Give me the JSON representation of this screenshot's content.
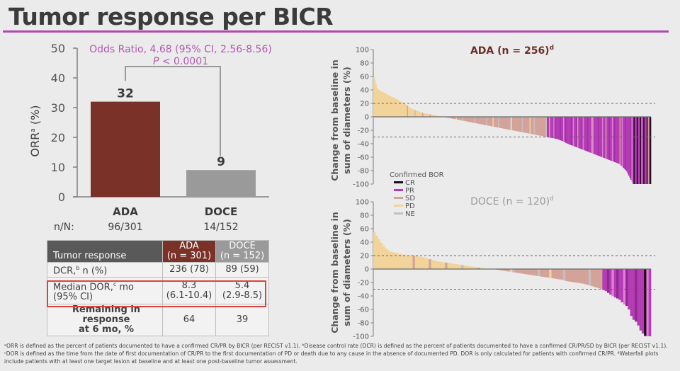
{
  "title": "Tumor response per BICR",
  "colors": {
    "accent_rule": "#b04ab0",
    "ada": "#7a3128",
    "doce": "#9a9a9a",
    "odds_text": "#b05ab0",
    "highlight_box": "#d9443f",
    "CR": "#1a0a14",
    "PR": "#b43cb4",
    "SD": "#d3a39a",
    "PD": "#f2d49a",
    "NE": "#c9bcc0"
  },
  "bar_chart": {
    "ylabel": "ORR",
    "ylabel_sup": "a",
    "ylabel_suffix": " (%)",
    "odds_ratio": "Odds Ratio, 4.68 (95% CI, 2.56-8.56)",
    "p_value_label": "P",
    "p_value_rest": " < 0.0001",
    "nn_label": "n/N:"
  },
  "table": {
    "header": {
      "label": "Tumor response",
      "ada_line1": "ADA",
      "ada_line2": "(n = 301)",
      "doce_line1": "DOCE",
      "doce_line2": "(n = 152)"
    },
    "rows": [
      {
        "label": "DCR,",
        "sup": "b",
        "label_rest": " n (%)",
        "ada": "236 (78)",
        "doce": "89 (59)"
      },
      {
        "label": "Median DOR,",
        "sup": "c",
        "label_rest": " mo",
        "label_line2": "(95% CI)",
        "ada": "8.3",
        "ada_line2": "(6.1-10.4)",
        "doce": "5.4",
        "doce_line2": "(2.9-8.5)"
      },
      {
        "label": "Remaining in response",
        "label_line2": "at 6 mo, %",
        "ada": "64",
        "doce": "39"
      }
    ]
  },
  "waterfall": {
    "ylabel_line1": "Change from baseline in",
    "ylabel_line2": "sum of diameters (%)",
    "legend_title": "Confirmed BOR",
    "legend": [
      "CR",
      "PR",
      "SD",
      "PD",
      "NE"
    ],
    "ada_title": "ADA (n = 256)",
    "doce_title": "DOCE (n = 120)",
    "title_sup": "d"
  },
  "footnote": "ᵃORR is defined as the percent of patients documented to have a confirmed CR/PR by BICR (per RECIST v1.1). ᵇDisease control rate (DCR) is defined as the percent of patients documented to have a confirmed CR/PR/SD by BICR (per RECIST v1.1). ᶜDOR is defined as the time from the date of first documentation of CR/PR to the first documentation of PD or death due to any cause in the absence of documented PD. DOR is only calculated for patients with confirmed CR/PR. ᵈWaterfall plots include patients with at least one target lesion at baseline and at least one post-baseline tumor assessment.",
  "chart_data": [
    {
      "type": "bar",
      "title": "",
      "categories": [
        "ADA",
        "DOCE"
      ],
      "values": [
        32,
        9
      ],
      "value_labels": [
        "32",
        "9"
      ],
      "n_over_N": [
        "96/301",
        "14/152"
      ],
      "xlabel": "",
      "ylabel": "ORRa (%)",
      "ylim": [
        0,
        50
      ],
      "yticks": [
        0,
        10,
        20,
        30,
        40,
        50
      ],
      "annotations": [
        "Odds Ratio, 4.68 (95% CI, 2.56-8.56)",
        "P < 0.0001"
      ],
      "colors": [
        "#7a3128",
        "#9a9a9a"
      ],
      "grid": false
    },
    {
      "type": "bar",
      "subtype": "waterfall",
      "title": "ADA (n = 256)d",
      "n": 256,
      "ylabel": "Change from baseline in sum of diameters (%)",
      "ylim": [
        -100,
        100
      ],
      "yticks": [
        -100,
        -80,
        -60,
        -40,
        -20,
        0,
        20,
        40,
        60,
        80,
        100
      ],
      "reference_lines": [
        20,
        -30
      ],
      "legend_title": "Confirmed BOR",
      "legend": [
        "CR",
        "PR",
        "SD",
        "PD",
        "NE"
      ],
      "approx_profile": {
        "max_increase": 60,
        "zero_crossing_fraction": 0.12,
        "value_at_half": -28,
        "value_at_75pct": -50,
        "min": -100,
        "count_at_minus_100": 6
      },
      "sorted_values_approx": [
        60,
        42,
        38,
        36,
        33,
        30,
        28,
        25,
        22,
        20,
        15,
        12,
        10,
        8,
        6,
        5,
        4,
        3,
        2,
        1,
        0,
        -1,
        -2,
        -3,
        -4,
        -5,
        -6,
        -7,
        -8,
        -9,
        -10,
        -11,
        -12,
        -13,
        -14,
        -15,
        -16,
        -17,
        -18,
        -19,
        -20,
        -21,
        -22,
        -23,
        -24,
        -25,
        -26,
        -27,
        -28,
        -29,
        -30,
        -31,
        -32,
        -33,
        -35,
        -37,
        -40,
        -42,
        -44,
        -46,
        -48,
        -50,
        -52,
        -54,
        -56,
        -58,
        -60,
        -62,
        -64,
        -66,
        -68,
        -70,
        -75,
        -80,
        -90,
        -100,
        -100,
        -100,
        -100,
        -100,
        -100
      ]
    },
    {
      "type": "bar",
      "subtype": "waterfall",
      "title": "DOCE (n = 120)d",
      "n": 120,
      "ylabel": "Change from baseline in sum of diameters (%)",
      "ylim": [
        -100,
        100
      ],
      "yticks": [
        -100,
        -80,
        -60,
        -40,
        -20,
        0,
        20,
        40,
        60,
        80,
        100
      ],
      "reference_lines": [
        20,
        -30
      ],
      "legend": [
        "CR",
        "PR",
        "SD",
        "PD",
        "NE"
      ],
      "sorted_values_approx": [
        55,
        45,
        35,
        28,
        25,
        24,
        22,
        21,
        20,
        20,
        19,
        18,
        16,
        14,
        12,
        11,
        10,
        9,
        8,
        7,
        6,
        5,
        4,
        3,
        2,
        1,
        0,
        0,
        -1,
        -2,
        -3,
        -4,
        -5,
        -6,
        -7,
        -8,
        -9,
        -10,
        -11,
        -12,
        -13,
        -14,
        -15,
        -16,
        -18,
        -19,
        -20,
        -21,
        -22,
        -24,
        -26,
        -28,
        -30,
        -33,
        -38,
        -42,
        -45,
        -52,
        -56,
        -74,
        -79,
        -93,
        -100,
        -100
      ]
    }
  ]
}
